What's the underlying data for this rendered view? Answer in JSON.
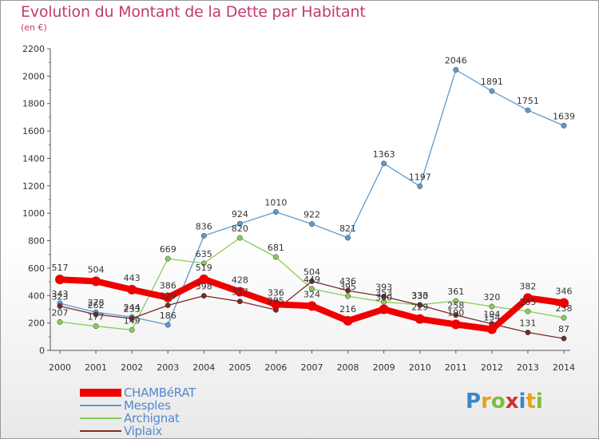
{
  "title": "Evolution du Montant de la Dette par Habitant",
  "subtitle": "(en €)",
  "logo": {
    "text": "Proxiti",
    "letter_colors": [
      "#3a86c8",
      "#e8a21f",
      "#7abf3a",
      "#d03030",
      "#3a86c8",
      "#e8a21f",
      "#7abf3a"
    ]
  },
  "chart_data": {
    "type": "line",
    "x": [
      "2000",
      "2001",
      "2002",
      "2003",
      "2004",
      "2005",
      "2006",
      "2007",
      "2008",
      "2009",
      "2010",
      "2011",
      "2012",
      "2013",
      "2014"
    ],
    "ylim": [
      0,
      2200
    ],
    "y_ticks": [
      0,
      200,
      400,
      600,
      800,
      1000,
      1200,
      1400,
      1600,
      1800,
      2000,
      2200
    ],
    "grid": false,
    "legend_placement": "bottom-left",
    "series": [
      {
        "name": "CHAMBéRAT",
        "color": "#ee0000",
        "values": [
          517,
          504,
          443,
          386,
          519,
          428,
          336,
          324,
          216,
          300,
          229,
          190,
          154,
          382,
          346
        ],
        "labels": [
          "517",
          "504",
          "443",
          "386",
          "519",
          "428",
          "336",
          "324",
          "216",
          "300",
          "229",
          "190",
          "154",
          "382",
          "346"
        ]
      },
      {
        "name": "Mesples",
        "color": "#5b9bd0",
        "values": [
          343,
          278,
          244,
          186,
          836,
          924,
          1010,
          922,
          821,
          1363,
          1197,
          2046,
          1891,
          1751,
          1639
        ],
        "labels": [
          "343",
          "278",
          "244",
          "186",
          "836",
          "924",
          "1010",
          "922",
          "821",
          "1363",
          "1197",
          "2046",
          "1891",
          "1751",
          "1639"
        ]
      },
      {
        "name": "Archignat",
        "color": "#88cc55",
        "values": [
          207,
          177,
          149,
          669,
          635,
          820,
          681,
          449,
          395,
          353,
          333,
          361,
          320,
          285,
          238
        ],
        "labels": [
          "207",
          "177",
          "149",
          "669",
          "635",
          "820",
          "681",
          "449",
          "395",
          "353",
          "333",
          "361",
          "320",
          "285",
          "238"
        ]
      },
      {
        "name": "Viplaix",
        "color": "#7a2a2a",
        "values": [
          323,
          262,
          233,
          329,
          398,
          357,
          295,
          504,
          436,
          393,
          330,
          258,
          194,
          131,
          87
        ],
        "labels": [
          "323",
          "262",
          "233",
          "329",
          "398",
          "357",
          "295",
          "504",
          "436",
          "393",
          "330",
          "258",
          "194",
          "131",
          "87"
        ]
      }
    ]
  }
}
